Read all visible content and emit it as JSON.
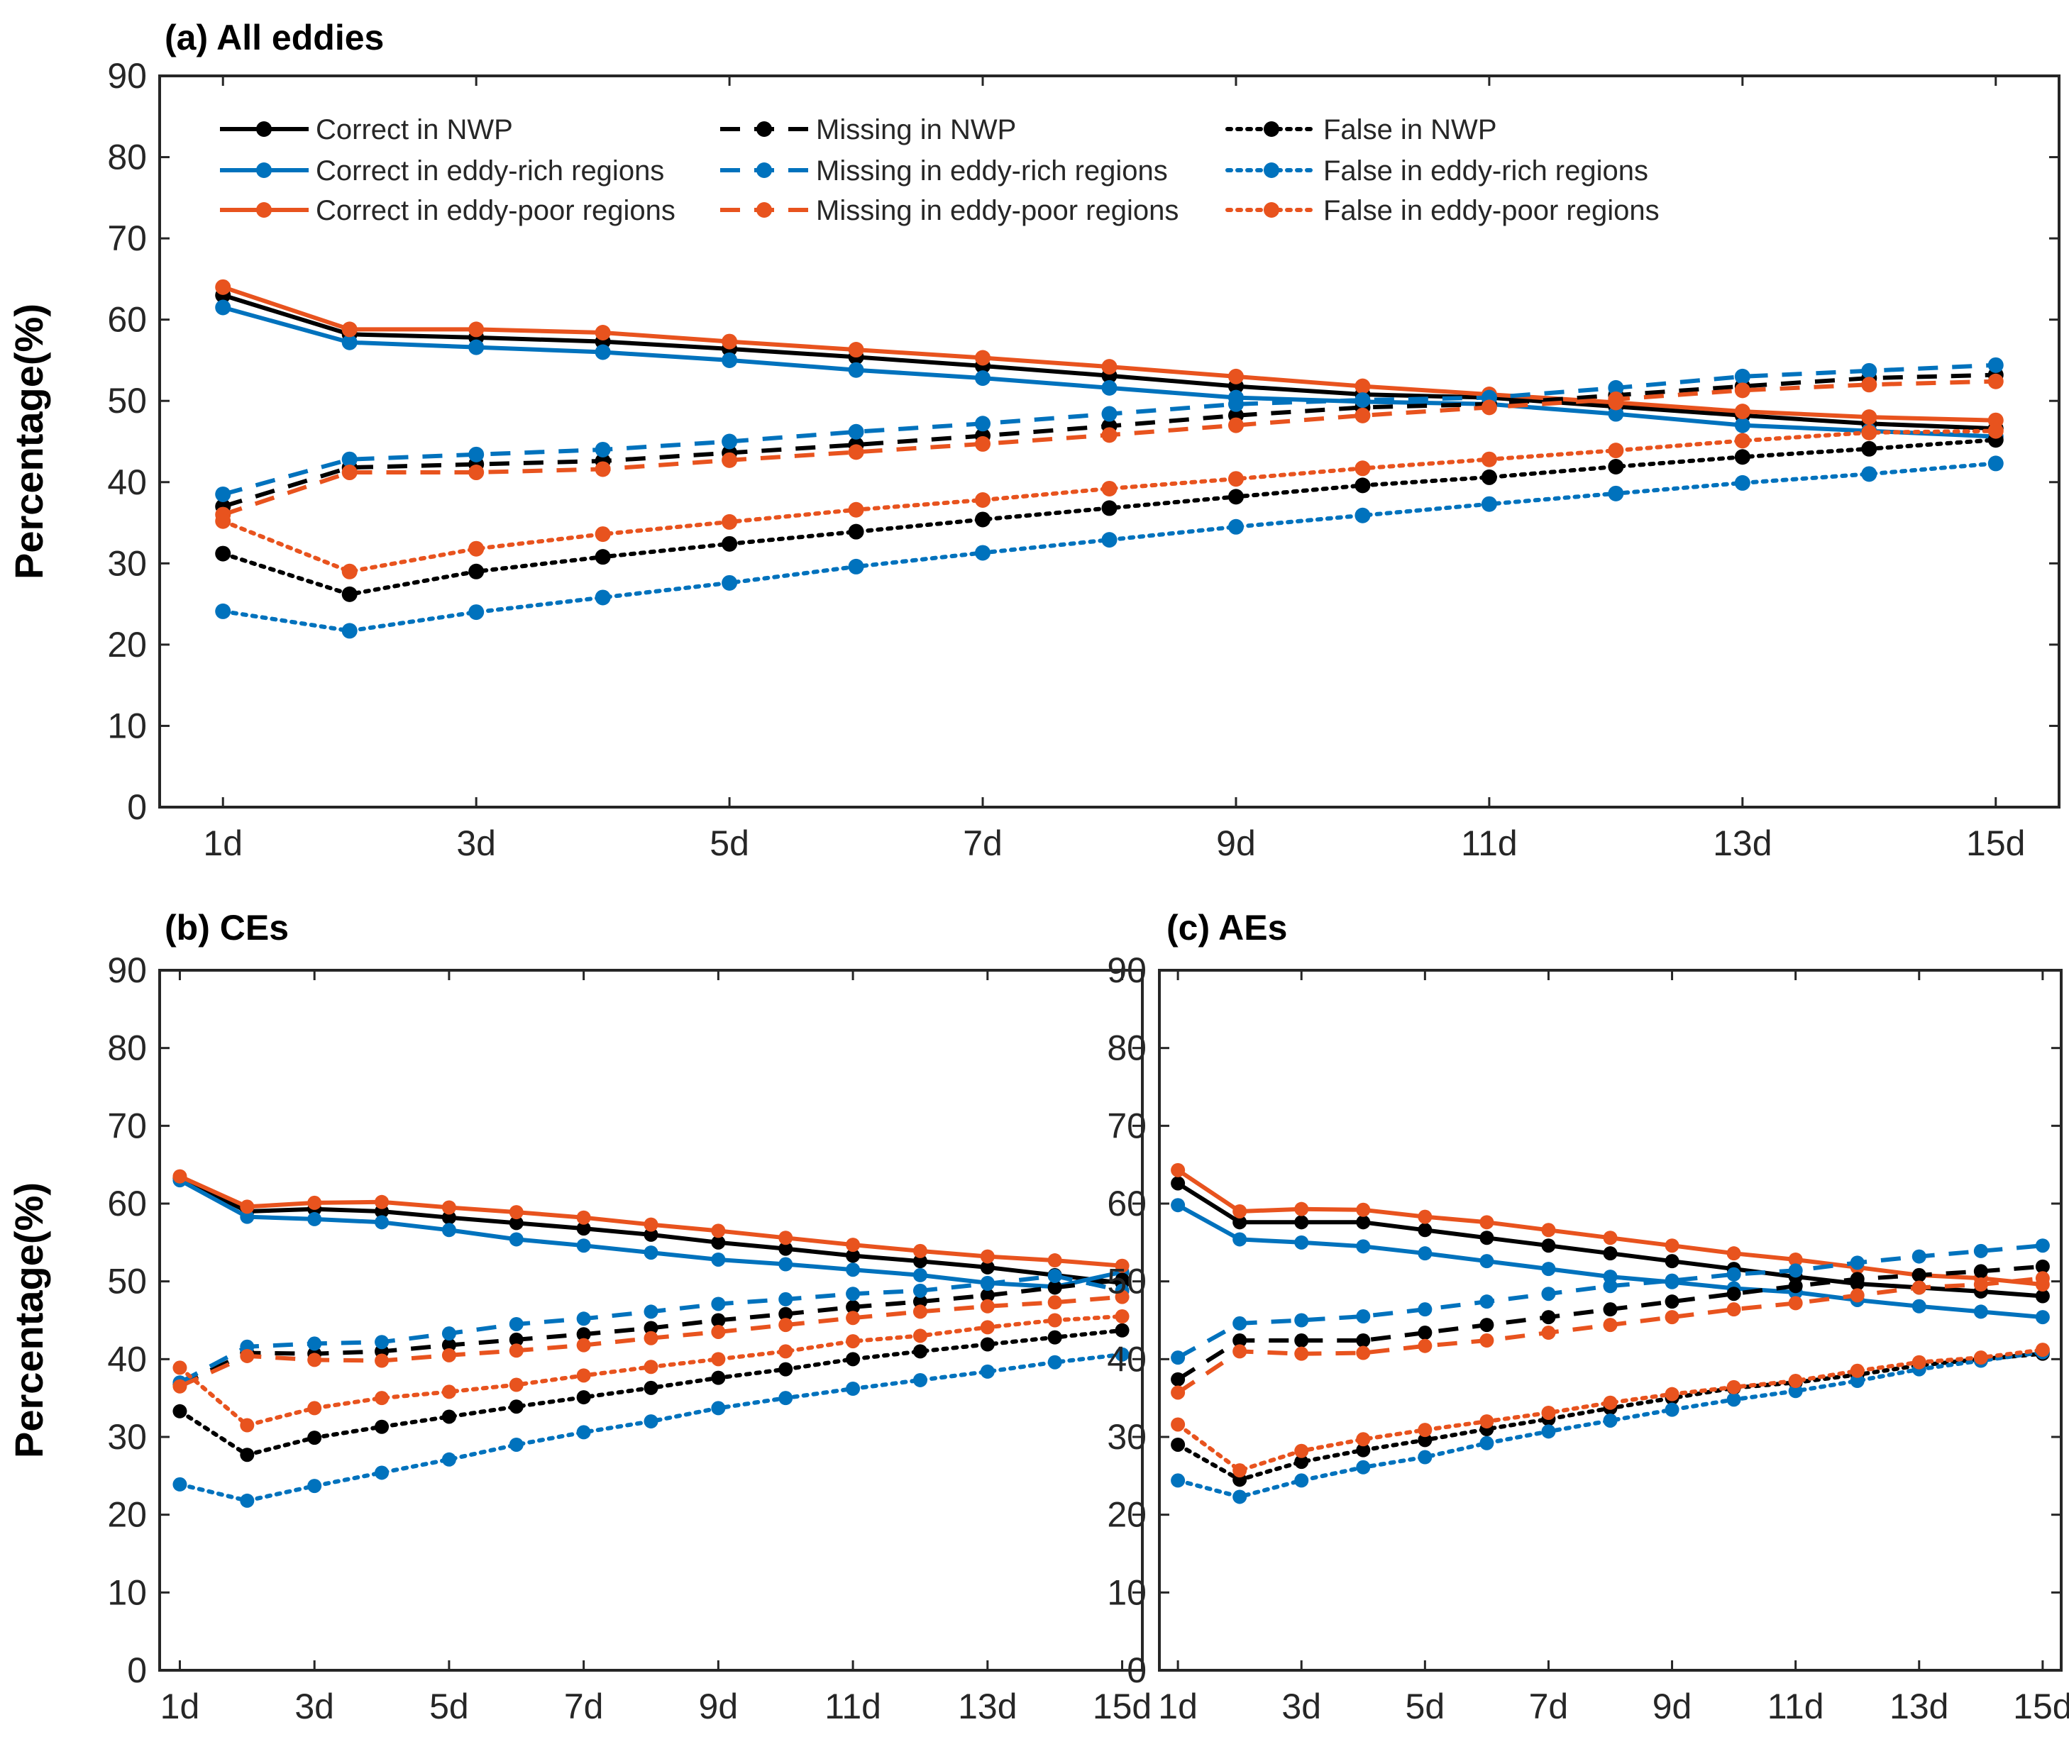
{
  "chart_data": [
    {
      "id": "a",
      "type": "line",
      "title": "(a) All eddies",
      "ylabel": "Percentage(%)",
      "xlabel": "",
      "ylim": [
        0,
        90
      ],
      "yticks": [
        0,
        10,
        20,
        30,
        40,
        50,
        60,
        70,
        80,
        90
      ],
      "x": [
        1,
        2,
        3,
        4,
        5,
        6,
        7,
        8,
        9,
        10,
        11,
        12,
        13,
        14,
        15
      ],
      "xticks": [
        1,
        3,
        5,
        7,
        9,
        11,
        13,
        15
      ],
      "xtick_labels": [
        "1d",
        "3d",
        "5d",
        "7d",
        "9d",
        "11d",
        "13d",
        "15d"
      ],
      "legend_position": "top",
      "series": [
        {
          "name": "Correct in NWP",
          "color": "#000000",
          "style": "solid",
          "values": [
            63.0,
            58.2,
            57.8,
            57.3,
            56.4,
            55.4,
            54.3,
            53.1,
            51.8,
            50.8,
            50.4,
            49.3,
            48.2,
            47.2,
            46.6
          ]
        },
        {
          "name": "Correct in eddy-rich regions",
          "color": "#0072BD",
          "style": "solid",
          "values": [
            61.5,
            57.2,
            56.6,
            56.0,
            55.0,
            53.8,
            52.8,
            51.6,
            50.4,
            49.9,
            49.6,
            48.4,
            47.0,
            46.3,
            45.6
          ]
        },
        {
          "name": "Correct in eddy-poor regions",
          "color": "#E8531E",
          "style": "solid",
          "values": [
            64.0,
            58.8,
            58.8,
            58.4,
            57.3,
            56.3,
            55.3,
            54.2,
            53.0,
            51.8,
            50.8,
            49.8,
            48.7,
            48.0,
            47.6
          ]
        },
        {
          "name": "Missing in NWP",
          "color": "#000000",
          "style": "dashed",
          "values": [
            37.0,
            41.8,
            42.2,
            42.6,
            43.6,
            44.6,
            45.7,
            46.9,
            48.2,
            49.2,
            49.6,
            50.7,
            51.8,
            52.8,
            53.2
          ]
        },
        {
          "name": "Missing in eddy-rich regions",
          "color": "#0072BD",
          "style": "dashed",
          "values": [
            38.5,
            42.8,
            43.4,
            44.0,
            45.0,
            46.2,
            47.2,
            48.4,
            49.6,
            50.1,
            50.4,
            51.6,
            53.0,
            53.7,
            54.4
          ]
        },
        {
          "name": "Missing in eddy-poor regions",
          "color": "#E8531E",
          "style": "dashed",
          "values": [
            36.0,
            41.2,
            41.2,
            41.6,
            42.7,
            43.7,
            44.7,
            45.8,
            47.0,
            48.2,
            49.2,
            50.2,
            51.3,
            52.0,
            52.4
          ]
        },
        {
          "name": "False in NWP",
          "color": "#000000",
          "style": "dotted",
          "values": [
            31.2,
            26.2,
            29.0,
            30.8,
            32.4,
            33.9,
            35.4,
            36.8,
            38.2,
            39.6,
            40.6,
            41.9,
            43.1,
            44.1,
            45.2
          ]
        },
        {
          "name": "False in eddy-rich regions",
          "color": "#0072BD",
          "style": "dotted",
          "values": [
            24.1,
            21.7,
            24.0,
            25.8,
            27.6,
            29.6,
            31.3,
            32.9,
            34.5,
            35.9,
            37.3,
            38.6,
            39.9,
            41.0,
            42.3
          ]
        },
        {
          "name": "False in eddy-poor regions",
          "color": "#E8531E",
          "style": "dotted",
          "values": [
            35.2,
            29.0,
            31.8,
            33.6,
            35.1,
            36.6,
            37.8,
            39.2,
            40.4,
            41.7,
            42.8,
            43.9,
            45.1,
            46.1,
            46.3
          ]
        }
      ]
    },
    {
      "id": "b",
      "type": "line",
      "title": "(b) CEs",
      "ylabel": "Percentage(%)",
      "xlabel": "",
      "ylim": [
        0,
        90
      ],
      "yticks": [
        0,
        10,
        20,
        30,
        40,
        50,
        60,
        70,
        80,
        90
      ],
      "x": [
        1,
        2,
        3,
        4,
        5,
        6,
        7,
        8,
        9,
        10,
        11,
        12,
        13,
        14,
        15
      ],
      "xticks": [
        1,
        3,
        5,
        7,
        9,
        11,
        13,
        15
      ],
      "xtick_labels": [
        "1d",
        "3d",
        "5d",
        "7d",
        "9d",
        "11d",
        "13d",
        "15d"
      ],
      "series": [
        {
          "name": "Correct in NWP",
          "color": "#000000",
          "style": "solid",
          "values": [
            63.3,
            59.0,
            59.3,
            59.0,
            58.2,
            57.5,
            56.8,
            56.0,
            55.0,
            54.2,
            53.3,
            52.6,
            51.8,
            50.8,
            49.8
          ]
        },
        {
          "name": "Correct in eddy-rich regions",
          "color": "#0072BD",
          "style": "solid",
          "values": [
            63.0,
            58.3,
            58.0,
            57.6,
            56.6,
            55.4,
            54.6,
            53.7,
            52.8,
            52.2,
            51.5,
            50.8,
            49.8,
            49.3,
            51.2
          ]
        },
        {
          "name": "Correct in eddy-poor regions",
          "color": "#E8531E",
          "style": "solid",
          "values": [
            63.5,
            59.6,
            60.1,
            60.2,
            59.5,
            58.9,
            58.2,
            57.3,
            56.5,
            55.6,
            54.7,
            53.9,
            53.2,
            52.7,
            52.0
          ]
        },
        {
          "name": "Missing in NWP",
          "color": "#000000",
          "style": "dashed",
          "values": [
            36.7,
            40.8,
            40.7,
            41.0,
            41.8,
            42.5,
            43.2,
            44.0,
            45.0,
            45.8,
            46.7,
            47.4,
            48.2,
            49.2,
            50.2
          ]
        },
        {
          "name": "Missing in eddy-rich regions",
          "color": "#0072BD",
          "style": "dashed",
          "values": [
            37.0,
            41.6,
            42.0,
            42.2,
            43.3,
            44.5,
            45.2,
            46.1,
            47.1,
            47.7,
            48.4,
            48.8,
            49.7,
            50.7,
            48.8
          ]
        },
        {
          "name": "Missing in eddy-poor regions",
          "color": "#E8531E",
          "style": "dashed",
          "values": [
            36.5,
            40.4,
            39.9,
            39.8,
            40.5,
            41.1,
            41.8,
            42.7,
            43.5,
            44.4,
            45.3,
            46.1,
            46.8,
            47.3,
            48.0
          ]
        },
        {
          "name": "False in NWP",
          "color": "#000000",
          "style": "dotted",
          "values": [
            33.3,
            27.7,
            29.9,
            31.3,
            32.6,
            33.9,
            35.1,
            36.3,
            37.6,
            38.7,
            40.0,
            41.0,
            41.9,
            42.8,
            43.7
          ]
        },
        {
          "name": "False in eddy-rich regions",
          "color": "#0072BD",
          "style": "dotted",
          "values": [
            23.9,
            21.8,
            23.7,
            25.4,
            27.1,
            29.0,
            30.6,
            32.0,
            33.7,
            35.0,
            36.2,
            37.3,
            38.4,
            39.6,
            40.6
          ]
        },
        {
          "name": "False in eddy-poor regions",
          "color": "#E8531E",
          "style": "dotted",
          "values": [
            38.9,
            31.5,
            33.7,
            35.0,
            35.8,
            36.7,
            37.9,
            39.0,
            40.0,
            41.0,
            42.3,
            43.0,
            44.1,
            45.0,
            45.5
          ]
        }
      ]
    },
    {
      "id": "c",
      "type": "line",
      "title": "(c) AEs",
      "ylabel": "",
      "xlabel": "",
      "ylim": [
        0,
        90
      ],
      "yticks": [
        0,
        10,
        20,
        30,
        40,
        50,
        60,
        70,
        80,
        90
      ],
      "x": [
        1,
        2,
        3,
        4,
        5,
        6,
        7,
        8,
        9,
        10,
        11,
        12,
        13,
        14,
        15
      ],
      "xticks": [
        1,
        3,
        5,
        7,
        9,
        11,
        13,
        15
      ],
      "xtick_labels": [
        "1d",
        "3d",
        "5d",
        "7d",
        "9d",
        "11d",
        "13d",
        "15d"
      ],
      "series": [
        {
          "name": "Correct in NWP",
          "color": "#000000",
          "style": "solid",
          "values": [
            62.6,
            57.6,
            57.6,
            57.6,
            56.6,
            55.6,
            54.6,
            53.6,
            52.6,
            51.6,
            50.6,
            49.7,
            49.2,
            48.7,
            48.1
          ]
        },
        {
          "name": "Correct in eddy-rich regions",
          "color": "#0072BD",
          "style": "solid",
          "values": [
            59.8,
            55.4,
            55.0,
            54.5,
            53.6,
            52.6,
            51.6,
            50.6,
            49.9,
            49.1,
            48.6,
            47.6,
            46.8,
            46.1,
            45.4
          ]
        },
        {
          "name": "Correct in eddy-poor regions",
          "color": "#E8531E",
          "style": "solid",
          "values": [
            64.3,
            59.0,
            59.3,
            59.2,
            58.3,
            57.6,
            56.6,
            55.6,
            54.6,
            53.6,
            52.8,
            51.8,
            50.8,
            50.4,
            49.6
          ]
        },
        {
          "name": "Missing in NWP",
          "color": "#000000",
          "style": "dashed",
          "values": [
            37.4,
            42.4,
            42.4,
            42.4,
            43.4,
            44.4,
            45.4,
            46.4,
            47.4,
            48.4,
            49.4,
            50.3,
            50.8,
            51.3,
            51.9
          ]
        },
        {
          "name": "Missing in eddy-rich regions",
          "color": "#0072BD",
          "style": "dashed",
          "values": [
            40.2,
            44.6,
            45.0,
            45.5,
            46.4,
            47.4,
            48.4,
            49.4,
            50.1,
            50.9,
            51.4,
            52.4,
            53.2,
            53.9,
            54.6
          ]
        },
        {
          "name": "Missing in eddy-poor regions",
          "color": "#E8531E",
          "style": "dashed",
          "values": [
            35.7,
            41.0,
            40.7,
            40.8,
            41.7,
            42.4,
            43.4,
            44.4,
            45.4,
            46.4,
            47.2,
            48.2,
            49.2,
            49.6,
            50.4
          ]
        },
        {
          "name": "False in NWP",
          "color": "#000000",
          "style": "dotted",
          "values": [
            29.0,
            24.5,
            26.8,
            28.3,
            29.6,
            31.0,
            32.3,
            33.7,
            35.0,
            36.3,
            37.0,
            38.0,
            39.2,
            40.0,
            40.7
          ]
        },
        {
          "name": "False in eddy-rich regions",
          "color": "#0072BD",
          "style": "dotted",
          "values": [
            24.4,
            22.3,
            24.4,
            26.1,
            27.4,
            29.2,
            30.7,
            32.1,
            33.5,
            34.8,
            35.9,
            37.2,
            38.7,
            39.8,
            40.9
          ]
        },
        {
          "name": "False in eddy-poor regions",
          "color": "#E8531E",
          "style": "dotted",
          "values": [
            31.6,
            25.7,
            28.2,
            29.7,
            30.9,
            32.0,
            33.1,
            34.4,
            35.5,
            36.4,
            37.2,
            38.5,
            39.6,
            40.2,
            41.2
          ]
        }
      ]
    }
  ]
}
